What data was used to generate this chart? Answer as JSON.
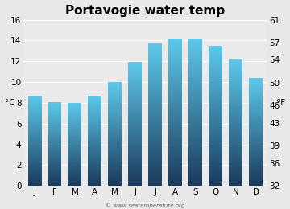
{
  "title": "Portavogie water temp",
  "months": [
    "J",
    "F",
    "M",
    "A",
    "M",
    "J",
    "J",
    "A",
    "S",
    "O",
    "N",
    "D"
  ],
  "values_c": [
    8.7,
    8.1,
    8.0,
    8.7,
    10.0,
    11.9,
    13.7,
    14.2,
    14.2,
    13.5,
    12.2,
    10.4
  ],
  "ylim_c": [
    0,
    16
  ],
  "yticks_c": [
    0,
    2,
    4,
    6,
    8,
    10,
    12,
    14,
    16
  ],
  "yticks_f": [
    32,
    36,
    39,
    43,
    46,
    50,
    54,
    57,
    61
  ],
  "ylabel_left": "°C",
  "ylabel_right": "°F",
  "bar_color_bottom": "#1a3a5c",
  "bar_color_top": "#5cc8ea",
  "bg_color": "#e8e8e8",
  "plot_bg": "#eaeaea",
  "title_fontsize": 11,
  "tick_fontsize": 7.5,
  "label_fontsize": 7.5,
  "watermark": "© www.seatemperature.org",
  "bar_width": 0.68,
  "num_grad_steps": 200
}
